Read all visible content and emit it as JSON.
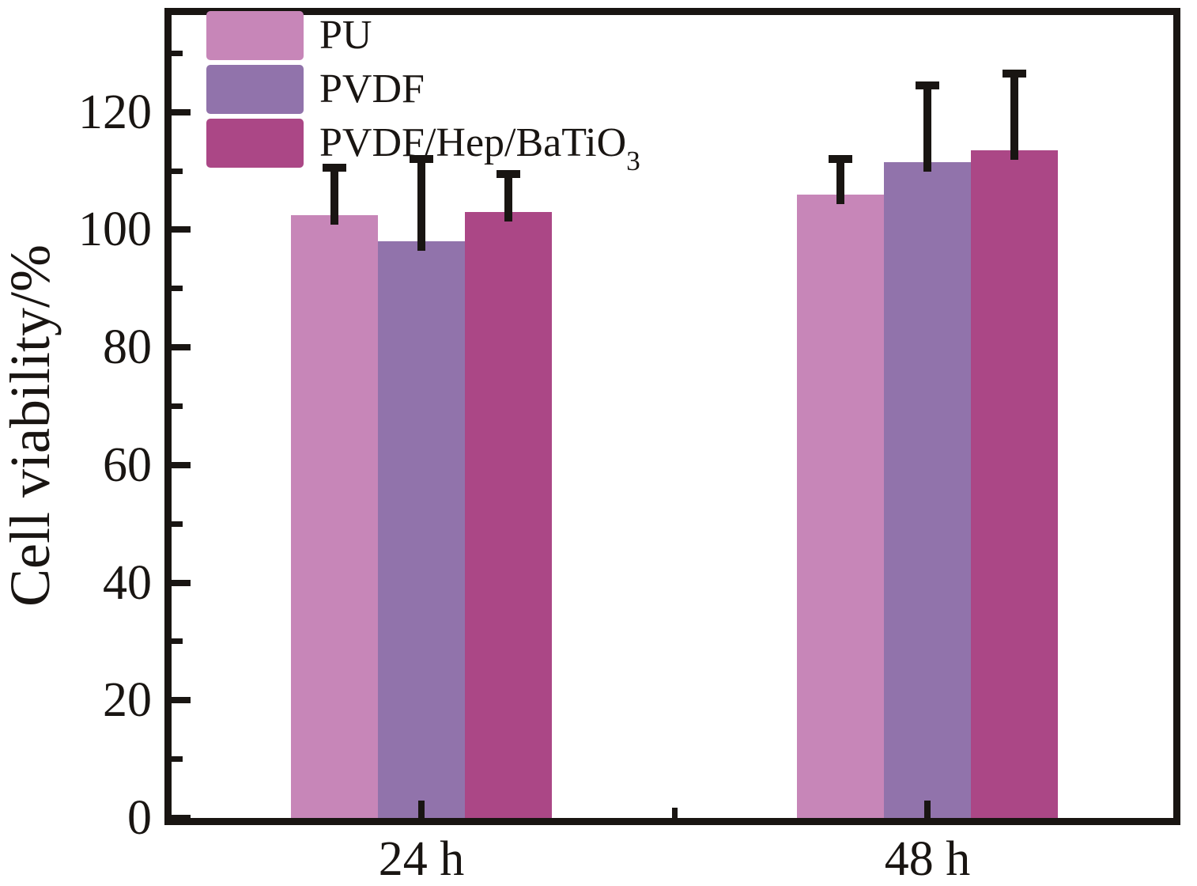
{
  "figure": {
    "background": "#ffffff",
    "frame_color": "#191512"
  },
  "chart_data": {
    "type": "bar",
    "title": "",
    "xlabel": "",
    "ylabel": "Cell viability/%",
    "categories": [
      "24 h",
      "48 h"
    ],
    "series": [
      {
        "name": "PU",
        "label_base": "PU",
        "label_sub": "",
        "color": "#c786b8",
        "values": [
          102.5,
          106.0
        ],
        "errors_plus": [
          8.0,
          6.0
        ]
      },
      {
        "name": "PVDF",
        "label_base": "PVDF",
        "label_sub": "",
        "color": "#9173ab",
        "values": [
          98.0,
          111.5
        ],
        "errors_plus": [
          14.0,
          13.0
        ]
      },
      {
        "name": "PVDF/Hep/BaTiO3",
        "label_base": "PVDF/Hep/BaTiO",
        "label_sub": "3",
        "color": "#ab4786",
        "values": [
          103.0,
          113.5
        ],
        "errors_plus": [
          6.5,
          13.0
        ]
      }
    ],
    "yticks_major": [
      0,
      20,
      40,
      60,
      80,
      100,
      120
    ],
    "yticks_minor": [
      10,
      30,
      50,
      70,
      90,
      110,
      130
    ],
    "ylim": [
      0,
      136.5
    ],
    "grid": false,
    "legend_position": "upper-left",
    "error_bars": "upper-only"
  }
}
